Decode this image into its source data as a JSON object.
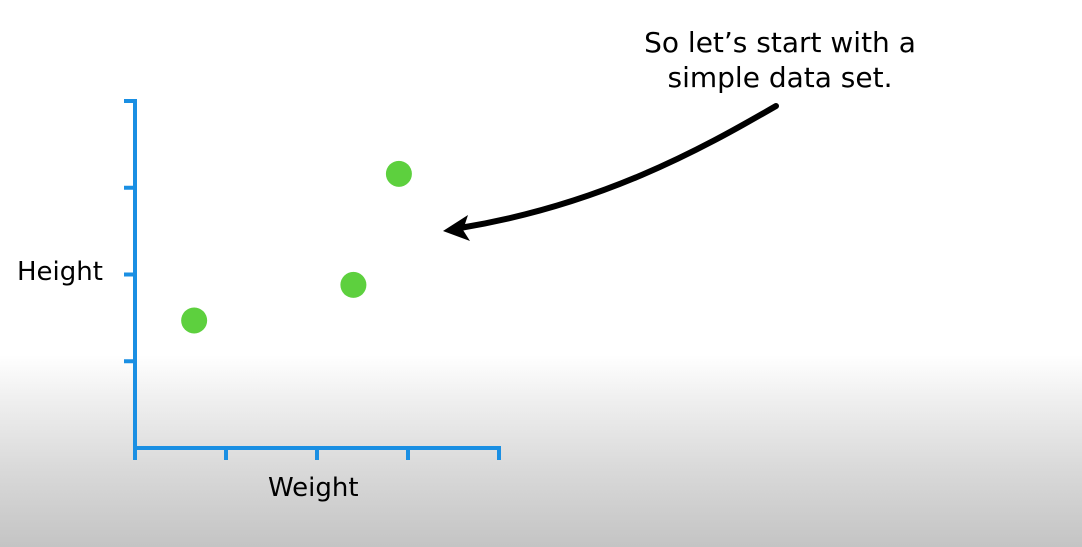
{
  "annotation": {
    "line1": "So let’s start with a",
    "line2": "simple data set."
  },
  "chart_data": {
    "type": "scatter",
    "xlabel": "Weight",
    "ylabel": "Height",
    "xlim": [
      0,
      4
    ],
    "ylim": [
      0,
      4
    ],
    "x_ticks": [
      0,
      1,
      2,
      3,
      4
    ],
    "y_ticks": [
      0,
      1,
      2,
      3,
      4
    ],
    "series": [
      {
        "x": [
          0.65,
          2.4,
          2.9
        ],
        "y": [
          1.47,
          1.88,
          3.16
        ]
      }
    ],
    "grid": false,
    "colors": {
      "axis": "#1a8fe3",
      "point": "#5dd03e",
      "arrow": "#000000"
    }
  }
}
